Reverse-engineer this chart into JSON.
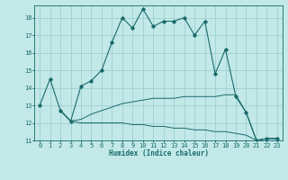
{
  "xlabel": "Humidex (Indice chaleur)",
  "ylabel": "",
  "bg_color": "#c2e8e8",
  "line_color": "#1a6b6b",
  "grid_color": "#98cccc",
  "xlim": [
    -0.5,
    23.5
  ],
  "ylim": [
    11,
    18.7
  ],
  "yticks": [
    11,
    12,
    13,
    14,
    15,
    16,
    17,
    18
  ],
  "xticks": [
    0,
    1,
    2,
    3,
    4,
    5,
    6,
    7,
    8,
    9,
    10,
    11,
    12,
    13,
    14,
    15,
    16,
    17,
    18,
    19,
    20,
    21,
    22,
    23
  ],
  "series1": {
    "x": [
      0,
      1,
      2,
      3,
      4,
      5,
      6,
      7,
      8,
      9,
      10,
      11,
      12,
      13,
      14,
      15,
      16,
      17,
      18,
      19,
      20,
      21,
      22,
      23
    ],
    "y": [
      13.0,
      14.5,
      12.7,
      12.1,
      14.1,
      14.4,
      15.0,
      16.6,
      18.0,
      17.4,
      18.5,
      17.5,
      17.8,
      17.8,
      18.0,
      17.0,
      17.8,
      14.8,
      16.2,
      13.5,
      12.6,
      11.0,
      11.1,
      11.1
    ]
  },
  "series2": {
    "x": [
      2,
      3,
      4,
      5,
      6,
      7,
      8,
      9,
      10,
      11,
      12,
      13,
      14,
      15,
      16,
      17,
      18,
      19,
      20,
      21,
      22,
      23
    ],
    "y": [
      12.7,
      12.1,
      12.2,
      12.5,
      12.7,
      12.9,
      13.1,
      13.2,
      13.3,
      13.4,
      13.4,
      13.4,
      13.5,
      13.5,
      13.5,
      13.5,
      13.6,
      13.6,
      12.6,
      11.0,
      11.1,
      11.1
    ]
  },
  "series3": {
    "x": [
      2,
      3,
      4,
      5,
      6,
      7,
      8,
      9,
      10,
      11,
      12,
      13,
      14,
      15,
      16,
      17,
      18,
      19,
      20,
      21,
      22,
      23
    ],
    "y": [
      12.7,
      12.1,
      12.0,
      12.0,
      12.0,
      12.0,
      12.0,
      11.9,
      11.9,
      11.8,
      11.8,
      11.7,
      11.7,
      11.6,
      11.6,
      11.5,
      11.5,
      11.4,
      11.3,
      11.0,
      11.1,
      11.1
    ]
  },
  "xlabel_fontsize": 5.5,
  "tick_fontsize": 5.0
}
